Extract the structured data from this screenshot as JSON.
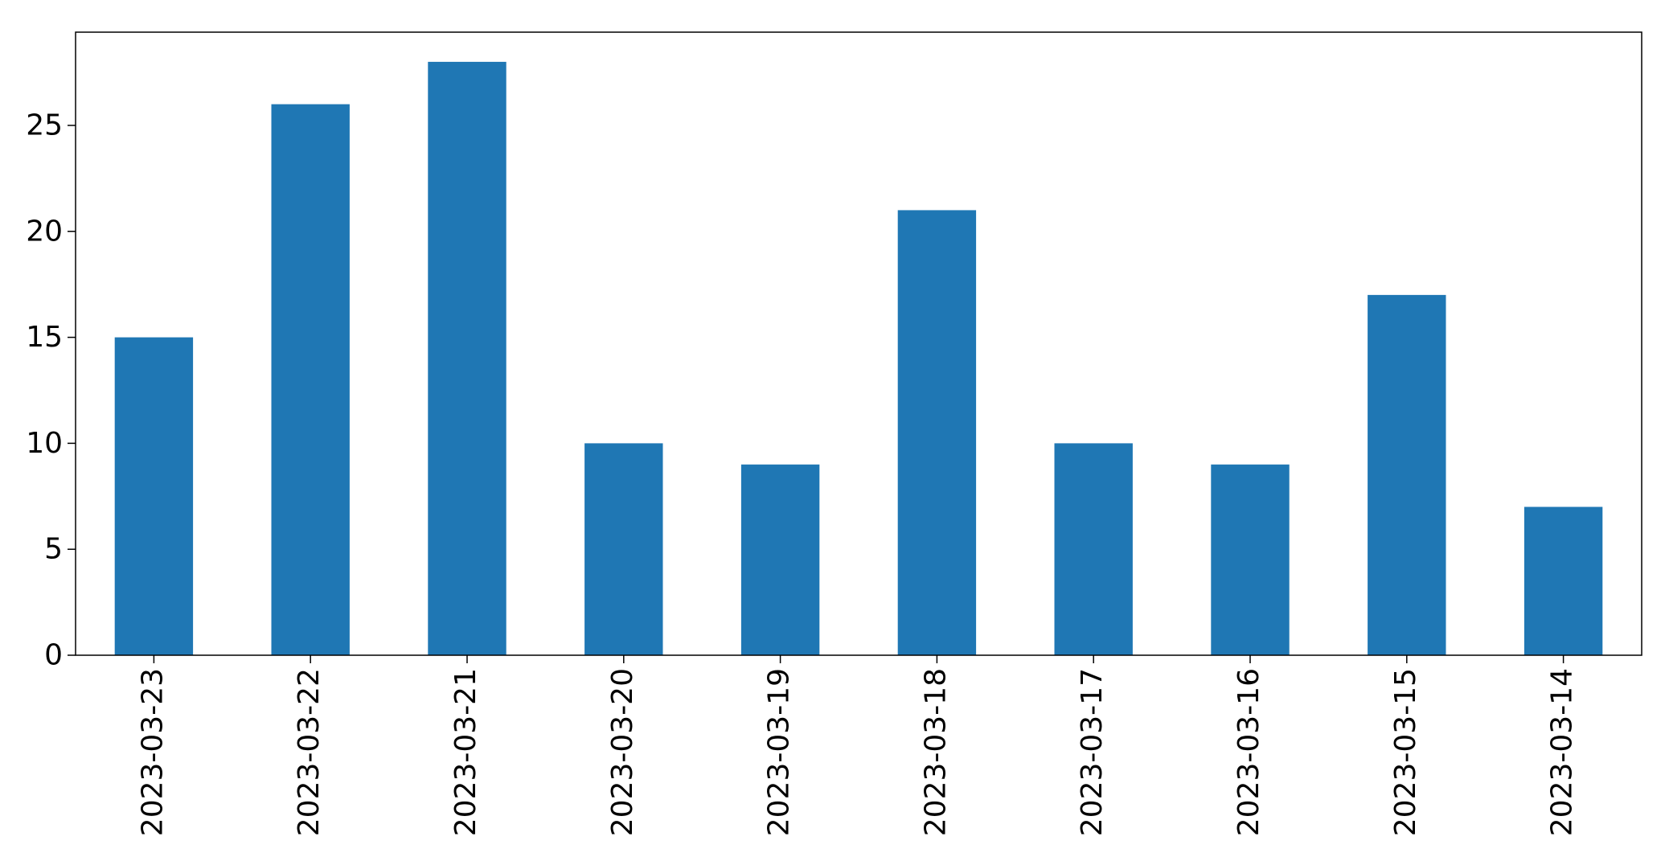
{
  "chart_data": {
    "type": "bar",
    "categories": [
      "2023-03-23",
      "2023-03-22",
      "2023-03-21",
      "2023-03-20",
      "2023-03-19",
      "2023-03-18",
      "2023-03-17",
      "2023-03-16",
      "2023-03-15",
      "2023-03-14"
    ],
    "values": [
      15,
      26,
      28,
      10,
      9,
      21,
      10,
      9,
      17,
      7
    ],
    "title": "",
    "xlabel": "",
    "ylabel": "",
    "ylim": [
      0,
      29.4
    ],
    "yticks": [
      0,
      5,
      10,
      15,
      20,
      25
    ],
    "grid": false,
    "legend": false,
    "colors": {
      "bar": "#1f77b4",
      "axis": "#000000",
      "background": "#ffffff"
    }
  }
}
